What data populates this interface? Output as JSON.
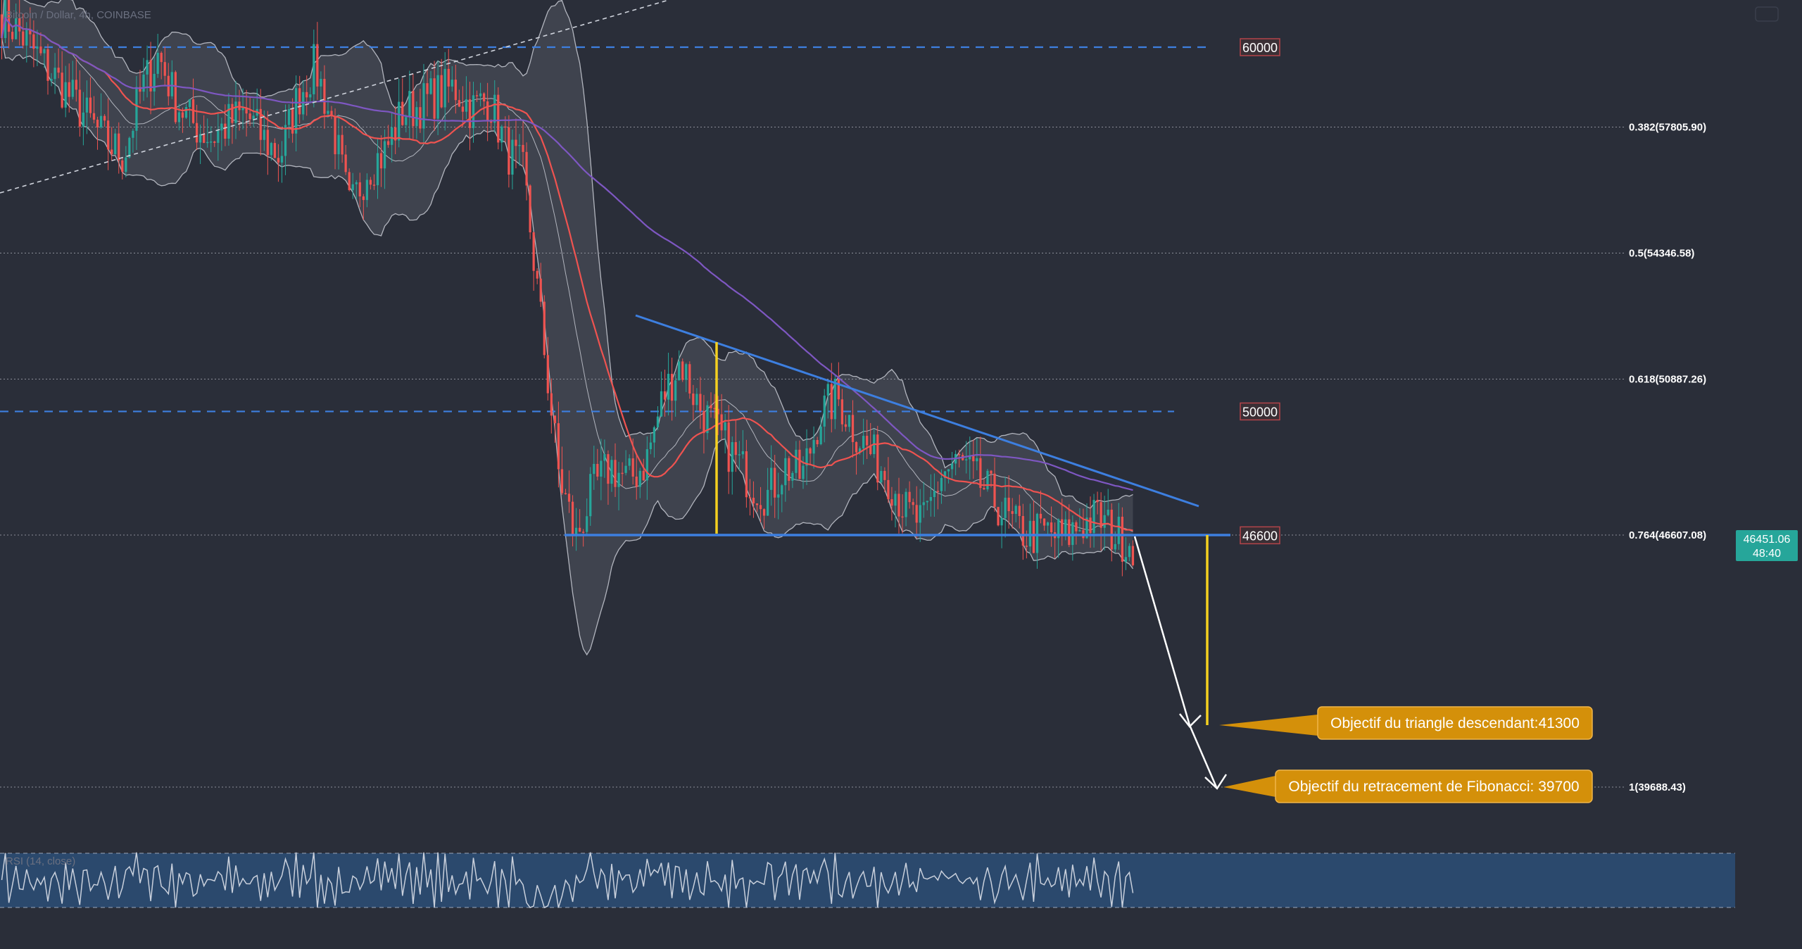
{
  "window": {
    "legend_title": "Bitcoin / Dollar, 4h, COINBASE",
    "rsi_label": "RSI (14, close)"
  },
  "price_axis": {
    "current_price": "46451.06",
    "countdown": "48:40",
    "current_price_color": "#26a69a"
  },
  "levels": [
    {
      "price": 60000,
      "label": "60000",
      "color": "#3d7fe0"
    },
    {
      "price": 50000,
      "label": "50000",
      "color": "#3d7fe0"
    },
    {
      "price": 46600,
      "label": "46600",
      "color": "#3d7fe0"
    }
  ],
  "fibonacci": [
    {
      "ratio": "0.382",
      "price": 57805.9,
      "label": "0.382(57805.90)"
    },
    {
      "ratio": "0.5",
      "price": 54346.58,
      "label": "0.5(54346.58)"
    },
    {
      "ratio": "0.618",
      "price": 50887.26,
      "label": "0.618(50887.26)"
    },
    {
      "ratio": "0.764",
      "price": 46607.08,
      "label": "0.764(46607.08)"
    },
    {
      "ratio": "1",
      "price": 39688.43,
      "label": "1(39688.43)"
    }
  ],
  "callouts": {
    "triangle": "Objectif du triangle descendant:41300",
    "fibonacci": "Objectif du retracement de Fibonacci: 39700",
    "color": "#d4900a"
  },
  "colors": {
    "bull": "#26a69a",
    "bear": "#ef5350",
    "ema_fast": "#ef5350",
    "ema_slow": "#7e57c2",
    "trendline": "#3d7fe0",
    "measure": "#f5d020",
    "rsi_band": "#2b4d77"
  },
  "chart_data": {
    "type": "line",
    "title": "Bitcoin / Dollar, 4h, COINBASE",
    "xlabel": "",
    "ylabel": "",
    "ylim": [
      38000,
      61000
    ],
    "series": [
      {
        "values": [
          60900,
          60400,
          59800,
          59200,
          58600,
          58000,
          57400,
          57000,
          58800,
          59800,
          58500,
          57900,
          57500,
          57900,
          58200,
          57500,
          57000,
          58600,
          59500,
          57900,
          55500,
          56700,
          57100,
          58200,
          58400,
          58700,
          58900,
          58300,
          58600,
          57200,
          56500,
          52400,
          48300,
          46500,
          47900,
          48500,
          48100,
          48600,
          50400,
          51400,
          50200,
          49500,
          48800,
          48100,
          47700,
          48500,
          48200,
          49900,
          50400,
          49500,
          48800,
          48200,
          47200,
          46900,
          48300,
          48600,
          48100,
          47600,
          46900,
          46600,
          46700,
          46500,
          46900,
          47100,
          46600,
          46400
        ]
      }
    ],
    "annotations": [
      "Objectif du triangle descendant:41300",
      "Objectif du retracement de Fibonacci: 39700"
    ]
  }
}
